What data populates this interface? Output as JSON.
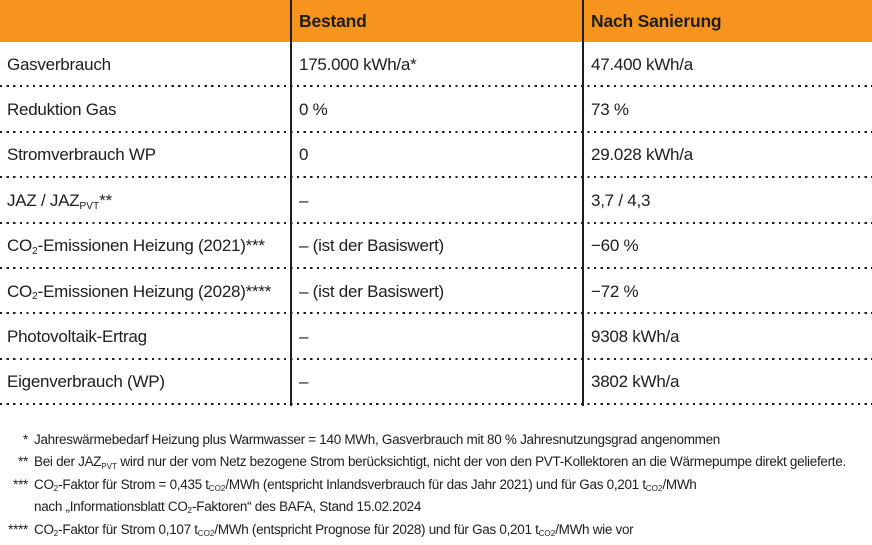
{
  "colors": {
    "header_bg": "#F7941E",
    "text": "#1D1D1B",
    "background": "#FFFFFF"
  },
  "table": {
    "columns": [
      "",
      "Bestand",
      "Nach Sanierung"
    ],
    "rows": [
      {
        "label": "Gasverbrauch",
        "bestand": "175.000 kWh/a*",
        "sanierung": "47.400 kWh/a"
      },
      {
        "label": "Reduktion Gas",
        "bestand": "0 %",
        "sanierung": "73 %"
      },
      {
        "label": "Stromverbrauch WP",
        "bestand": "0",
        "sanierung": "29.028 kWh/a"
      },
      {
        "label": "JAZ / JAZ[sub]PVT[/sub]**",
        "bestand": "–",
        "sanierung": "3,7 / 4,3"
      },
      {
        "label": "CO[sub]2[/sub]-Emissionen Heizung (2021)***",
        "bestand": "– (ist der Basiswert)",
        "sanierung": "−60 %"
      },
      {
        "label": "CO[sub]2[/sub]-Emissionen Heizung (2028)****",
        "bestand": "– (ist der Basiswert)",
        "sanierung": "−72 %"
      },
      {
        "label": "Photovoltaik-Ertrag",
        "bestand": "–",
        "sanierung": "9308 kWh/a"
      },
      {
        "label": "Eigenverbrauch (WP)",
        "bestand": "–",
        "sanierung": "3802 kWh/a"
      }
    ]
  },
  "footnotes": [
    {
      "marker": "*",
      "lines": [
        "Jahreswärmebedarf Heizung plus Warmwasser = 140 MWh, Gasverbrauch mit 80 % Jahresnutzungsgrad angenommen"
      ]
    },
    {
      "marker": "**",
      "lines": [
        "Bei der JAZ[sub]PVT[/sub] wird nur der vom Netz bezogene Strom berücksichtigt, nicht der von den PVT-Kollektoren an die Wärmepumpe direkt gelieferte."
      ]
    },
    {
      "marker": "***",
      "lines": [
        "CO[sub]2[/sub]-Faktor für Strom = 0,435 t[sub]CO2[/sub]/MWh (entspricht Inlandsverbrauch für das Jahr 2021) und für Gas 0,201 t[sub]CO2[/sub]/MWh",
        "nach „Informationsblatt CO[sub]2[/sub]-Faktoren“ des BAFA, Stand 15.02.2024"
      ]
    },
    {
      "marker": "****",
      "lines": [
        "CO[sub]2[/sub]-Faktor für Strom 0,107 t[sub]CO2[/sub]/MWh (entspricht Prognose für 2028) und für Gas 0,201 t[sub]CO2[/sub]/MWh wie vor"
      ]
    }
  ]
}
